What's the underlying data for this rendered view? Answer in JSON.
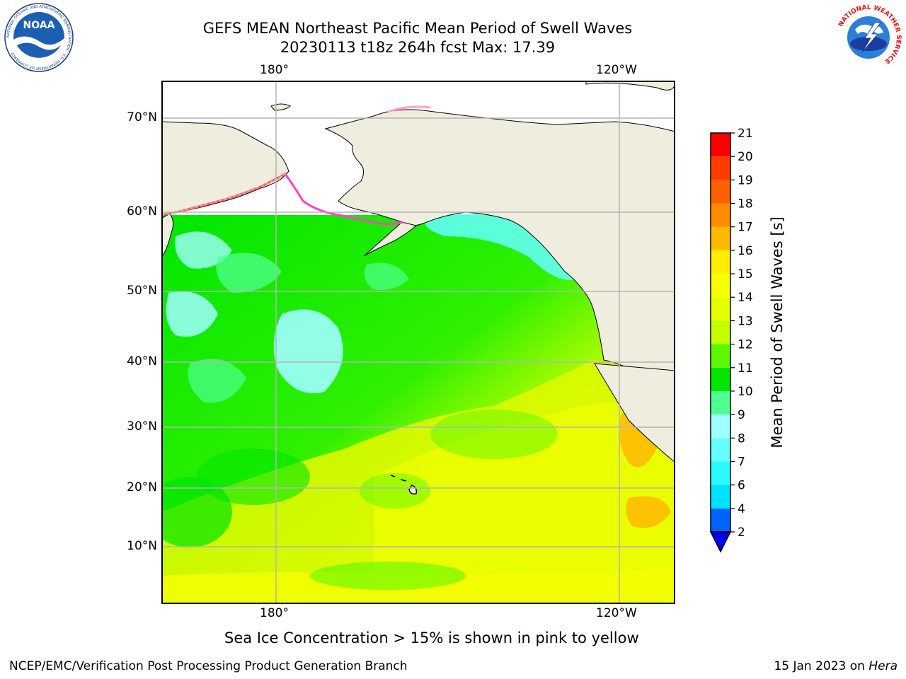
{
  "header": {
    "title_line1": "GEFS MEAN Northeast Pacific Mean Period of Swell Waves",
    "title_line2": "20230113 t18z 264h fcst   Max: 17.39"
  },
  "logos": {
    "left": {
      "name": "noaa-logo",
      "text": "NOAA",
      "ring_text": "NATIONAL OCEANIC AND ATMOSPHERIC ADMINISTRATION · U.S. DEPARTMENT OF COMMERCE"
    },
    "right": {
      "name": "nws-logo",
      "ring_text": "NATIONAL WEATHER SERVICE"
    }
  },
  "map": {
    "lon_labels": [
      "180°",
      "120°W"
    ],
    "lat_labels": [
      "70°N",
      "60°N",
      "50°N",
      "40°N",
      "30°N",
      "20°N",
      "10°N"
    ],
    "colors": {
      "land": "#efedde",
      "grid": "#b4b4b4",
      "coast": "#000000"
    }
  },
  "colorbar": {
    "title": "Mean Period of Swell Waves [s]",
    "levels": [
      2,
      4,
      6,
      7,
      8,
      9,
      10,
      11,
      12,
      13,
      14,
      15,
      16,
      17,
      18,
      19,
      20,
      21
    ],
    "labels": [
      "2",
      "4",
      "6",
      "7",
      "8",
      "9",
      "10",
      "11",
      "12",
      "13",
      "14",
      "15",
      "16",
      "17",
      "18",
      "19",
      "20",
      "21"
    ],
    "colors": [
      "#0062ff",
      "#00e0ff",
      "#2bfbff",
      "#66ffff",
      "#a0ffff",
      "#50ff90",
      "#00e600",
      "#5cf800",
      "#c3ff00",
      "#e6ff00",
      "#f6ff00",
      "#ffee00",
      "#ffba00",
      "#ff8c00",
      "#ff6000",
      "#ff3c00",
      "#ff0000"
    ],
    "under_color": "#0000ff"
  },
  "note": "Sea Ice Concentration > 15% is shown in pink to yellow",
  "footer": {
    "left": "NCEP/EMC/Verification Post Processing Product Generation Branch",
    "right_prefix": "15 Jan 2023 on ",
    "right_host": "Hera"
  }
}
